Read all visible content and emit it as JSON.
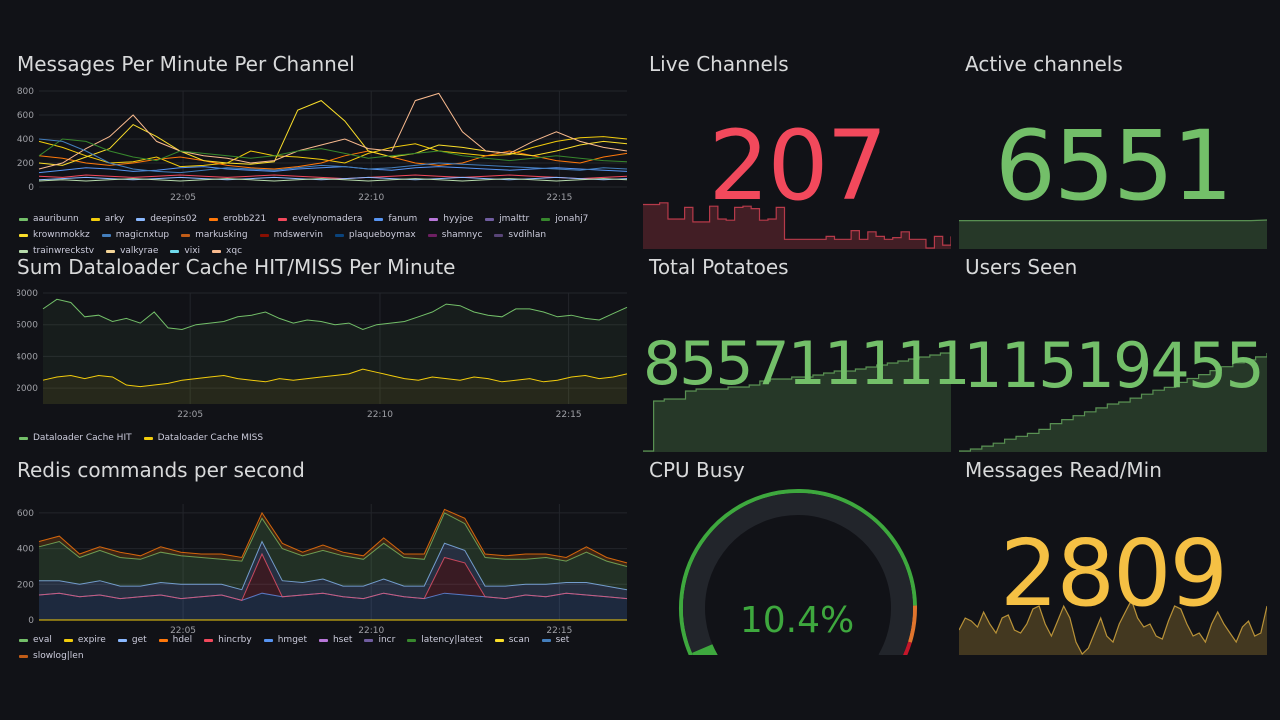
{
  "colors": {
    "background": "#111217",
    "grid": "#23252b",
    "axis_text": "#9fa0a6",
    "red": "#f2495c",
    "green": "#73bf69",
    "yellow": "#f5c044",
    "gauge_green": "#3ea83e",
    "gauge_orange": "#e0752d",
    "gauge_red": "#c4162a"
  },
  "panels": {
    "messages_per_minute": {
      "title": "Messages Per Minute Per Channel",
      "legend": [
        {
          "name": "aauribunn",
          "color": "#73bf69"
        },
        {
          "name": "arky",
          "color": "#f2cc0c"
        },
        {
          "name": "deepins02",
          "color": "#8ab8ff"
        },
        {
          "name": "erobb221",
          "color": "#ff780a"
        },
        {
          "name": "evelynomadera",
          "color": "#f2495c"
        },
        {
          "name": "fanum",
          "color": "#5794f2"
        },
        {
          "name": "hyyjoe",
          "color": "#b877d9"
        },
        {
          "name": "jmalttr",
          "color": "#705da0"
        },
        {
          "name": "jonahj7",
          "color": "#37872d"
        },
        {
          "name": "krownmokkz",
          "color": "#fade2a"
        },
        {
          "name": "magicnxtup",
          "color": "#447ebc"
        },
        {
          "name": "markusking",
          "color": "#c15c17"
        },
        {
          "name": "mdswervin",
          "color": "#890f02"
        },
        {
          "name": "plaqueboymax",
          "color": "#0a437c"
        },
        {
          "name": "shamnyc",
          "color": "#6d1f62"
        },
        {
          "name": "svdihlan",
          "color": "#584477"
        },
        {
          "name": "trainwreckstv",
          "color": "#b7dbab"
        },
        {
          "name": "valkyrae",
          "color": "#f4d598"
        },
        {
          "name": "vixi",
          "color": "#70dbed"
        },
        {
          "name": "xqc",
          "color": "#f9ba8f"
        }
      ],
      "chart_data": {
        "type": "line",
        "title": "Messages Per Minute Per Channel",
        "ylim": [
          0,
          800
        ],
        "yticks": [
          "800",
          "600",
          "400",
          "200",
          "0"
        ],
        "xticks": [
          "22:05",
          "22:10",
          "22:15"
        ],
        "grid": true,
        "legend_placement": "bottom",
        "series": [
          {
            "name": "arky",
            "color": "#f2cc0c",
            "values": [
              380,
              330,
              260,
              200,
              210,
              250,
              170,
              180,
              200,
              300,
              260,
              250,
              230,
              200,
              280,
              330,
              360,
              300,
              280,
              260,
              270,
              330,
              380,
              410,
              420,
              400
            ]
          },
          {
            "name": "erobb221",
            "color": "#ff780a",
            "values": [
              260,
              240,
              200,
              180,
              200,
              230,
              250,
              220,
              180,
              160,
              150,
              170,
              200,
              260,
              300,
              250,
              200,
              180,
              200,
              260,
              300,
              260,
              220,
              200,
              250,
              280
            ]
          },
          {
            "name": "krownmokkz",
            "color": "#fade2a",
            "values": [
              200,
              180,
              250,
              320,
              520,
              420,
              300,
              220,
              200,
              190,
              210,
              640,
              720,
              550,
              300,
              250,
              280,
              350,
              330,
              300,
              280,
              260,
              300,
              350,
              380,
              360
            ]
          },
          {
            "name": "xqc",
            "color": "#f9ba8f",
            "values": [
              150,
              200,
              320,
              420,
              600,
              380,
              300,
              260,
              240,
              200,
              220,
              300,
              350,
              400,
              320,
              300,
              720,
              780,
              460,
              300,
              280,
              380,
              460,
              380,
              330,
              300
            ]
          },
          {
            "name": "jonahj7",
            "color": "#37872d",
            "values": [
              260,
              400,
              380,
              300,
              250,
              220,
              300,
              280,
              260,
              240,
              260,
              300,
              320,
              280,
              240,
              260,
              280,
              300,
              260,
              240,
              220,
              240,
              260,
              240,
              220,
              210
            ]
          },
          {
            "name": "fanum",
            "color": "#5794f2",
            "values": [
              120,
              140,
              160,
              150,
              130,
              140,
              160,
              170,
              150,
              140,
              130,
              150,
              160,
              170,
              150,
              140,
              160,
              170,
              160,
              150,
              140,
              150,
              160,
              150,
              140,
              130
            ]
          },
          {
            "name": "magicnxtup",
            "color": "#447ebc",
            "values": [
              400,
              380,
              300,
              200,
              150,
              130,
              120,
              140,
              160,
              150,
              140,
              160,
              180,
              170,
              150,
              160,
              180,
              200,
              190,
              180,
              170,
              160,
              150,
              140,
              160,
              150
            ]
          },
          {
            "name": "evelynomadera",
            "color": "#f2495c",
            "values": [
              90,
              80,
              100,
              90,
              80,
              90,
              100,
              90,
              80,
              90,
              100,
              90,
              80,
              70,
              80,
              90,
              100,
              90,
              80,
              90,
              100,
              90,
              80,
              70,
              80,
              90
            ]
          },
          {
            "name": "deepins02",
            "color": "#8ab8ff",
            "values": [
              60,
              70,
              80,
              70,
              60,
              70,
              80,
              70,
              60,
              70,
              80,
              70,
              60,
              70,
              80,
              70,
              60,
              70,
              80,
              70,
              60,
              70,
              80,
              70,
              60,
              70
            ]
          },
          {
            "name": "trainwreckstv",
            "color": "#b7dbab",
            "values": [
              50,
              60,
              50,
              60,
              70,
              60,
              50,
              60,
              70,
              60,
              50,
              60,
              70,
              60,
              50,
              60,
              70,
              60,
              50,
              60,
              70,
              60,
              50,
              60,
              70,
              60
            ]
          }
        ]
      }
    },
    "dataloader_cache": {
      "title": "Sum Dataloader Cache HIT/MISS Per Minute",
      "legend": [
        {
          "name": "Dataloader Cache HIT",
          "color": "#73bf69"
        },
        {
          "name": "Dataloader Cache MISS",
          "color": "#f2cc0c"
        }
      ],
      "chart_data": {
        "type": "area",
        "title": "Sum Dataloader Cache HIT/MISS Per Minute",
        "ylim": [
          1000,
          8000
        ],
        "yticks": [
          "8000",
          "6000",
          "4000",
          "2000"
        ],
        "xticks": [
          "22:05",
          "22:10",
          "22:15"
        ],
        "grid": true,
        "legend_placement": "bottom",
        "series": [
          {
            "name": "Dataloader Cache HIT",
            "color": "#73bf69",
            "values": [
              7000,
              7600,
              7400,
              6500,
              6600,
              6200,
              6400,
              6100,
              6800,
              5800,
              5700,
              6000,
              6100,
              6200,
              6500,
              6600,
              6800,
              6400,
              6100,
              6300,
              6200,
              6000,
              6100,
              5700,
              6000,
              6100,
              6200,
              6500,
              6800,
              7300,
              7200,
              6800,
              6600,
              6500,
              7000,
              7000,
              6800,
              6500,
              6600,
              6400,
              6300,
              6700,
              7100
            ]
          },
          {
            "name": "Dataloader Cache MISS",
            "color": "#f2cc0c",
            "values": [
              2500,
              2700,
              2800,
              2600,
              2800,
              2700,
              2200,
              2100,
              2200,
              2300,
              2500,
              2600,
              2700,
              2800,
              2600,
              2500,
              2400,
              2600,
              2500,
              2600,
              2700,
              2800,
              2900,
              3200,
              3000,
              2800,
              2600,
              2500,
              2700,
              2600,
              2500,
              2700,
              2600,
              2400,
              2500,
              2600,
              2400,
              2500,
              2700,
              2800,
              2600,
              2700,
              2900
            ]
          }
        ]
      }
    },
    "redis_commands": {
      "title": "Redis commands per second",
      "legend": [
        {
          "name": "eval",
          "color": "#73bf69"
        },
        {
          "name": "expire",
          "color": "#f2cc0c"
        },
        {
          "name": "get",
          "color": "#8ab8ff"
        },
        {
          "name": "hdel",
          "color": "#ff780a"
        },
        {
          "name": "hincrby",
          "color": "#f2495c"
        },
        {
          "name": "hmget",
          "color": "#5794f2"
        },
        {
          "name": "hset",
          "color": "#b877d9"
        },
        {
          "name": "incr",
          "color": "#705da0"
        },
        {
          "name": "latency|latest",
          "color": "#37872d"
        },
        {
          "name": "scan",
          "color": "#fade2a"
        },
        {
          "name": "set",
          "color": "#447ebc"
        },
        {
          "name": "slowlog|len",
          "color": "#c15c17"
        }
      ],
      "chart_data": {
        "type": "area",
        "title": "Redis commands per second",
        "stacked": true,
        "ylim": [
          0,
          650
        ],
        "yticks": [
          "600",
          "400",
          "200",
          "0"
        ],
        "xticks": [
          "22:05",
          "22:10",
          "22:15"
        ],
        "grid": true,
        "legend_placement": "bottom",
        "series": [
          {
            "name": "hmget",
            "color": "#5794f2",
            "values": [
              140,
              150,
              130,
              140,
              120,
              130,
              140,
              120,
              130,
              140,
              110,
              150,
              130,
              140,
              150,
              130,
              120,
              150,
              130,
              120,
              150,
              140,
              130,
              120,
              140,
              130,
              150,
              140,
              130,
              120
            ]
          },
          {
            "name": "hincrby",
            "color": "#f2495c",
            "values": [
              0,
              0,
              0,
              0,
              0,
              0,
              0,
              0,
              0,
              0,
              0,
              220,
              0,
              0,
              0,
              0,
              0,
              0,
              0,
              0,
              200,
              180,
              0,
              0,
              0,
              0,
              0,
              0,
              0,
              0
            ]
          },
          {
            "name": "get",
            "color": "#8ab8ff",
            "values": [
              80,
              70,
              70,
              80,
              70,
              60,
              70,
              80,
              70,
              60,
              60,
              70,
              90,
              70,
              80,
              60,
              70,
              80,
              60,
              70,
              80,
              70,
              60,
              70,
              60,
              70,
              60,
              70,
              60,
              50
            ]
          },
          {
            "name": "eval",
            "color": "#73bf69",
            "values": [
              190,
              220,
              150,
              170,
              160,
              150,
              170,
              160,
              150,
              140,
              160,
              130,
              180,
              150,
              160,
              170,
              150,
              200,
              160,
              150,
              170,
              150,
              160,
              150,
              140,
              150,
              120,
              170,
              140,
              130
            ]
          },
          {
            "name": "hdel",
            "color": "#ff780a",
            "values": [
              30,
              30,
              20,
              20,
              30,
              20,
              30,
              20,
              20,
              30,
              20,
              30,
              30,
              20,
              30,
              20,
              20,
              30,
              20,
              30,
              20,
              30,
              20,
              20,
              30,
              20,
              20,
              30,
              20,
              20
            ]
          }
        ]
      }
    },
    "live_channels": {
      "title": "Live Channels",
      "value": "207",
      "color": "#f2495c",
      "sparkline": [
        0.75,
        0.75,
        0.78,
        0.5,
        0.5,
        0.7,
        0.45,
        0.45,
        0.72,
        0.5,
        0.48,
        0.7,
        0.72,
        0.68,
        0.48,
        0.5,
        0.7,
        0.15,
        0.15,
        0.15,
        0.15,
        0.15,
        0.2,
        0.15,
        0.15,
        0.3,
        0.15,
        0.28,
        0.2,
        0.15,
        0.18,
        0.28,
        0.15,
        0.15,
        0.0,
        0.2,
        0.05,
        0.2
      ]
    },
    "active_channels": {
      "title": "Active channels",
      "value": "6551",
      "color": "#73bf69",
      "sparkline": [
        0.98,
        0.98,
        0.98,
        0.98,
        0.98,
        0.98,
        0.98,
        0.98,
        0.98,
        0.98,
        0.98,
        0.98,
        0.98,
        0.98,
        0.98,
        0.98,
        0.98,
        0.98,
        0.98,
        1.0
      ]
    },
    "total_potatoes": {
      "title": "Total Potatoes",
      "value": "855711111",
      "color": "#73bf69",
      "sparkline": [
        0.0,
        0.5,
        0.52,
        0.52,
        0.6,
        0.62,
        0.62,
        0.62,
        0.64,
        0.64,
        0.66,
        0.7,
        0.72,
        0.72,
        0.74,
        0.74,
        0.76,
        0.78,
        0.8,
        0.8,
        0.82,
        0.84,
        0.86,
        0.88,
        0.9,
        0.92,
        0.94,
        0.96,
        0.98,
        1.0
      ]
    },
    "users_seen": {
      "title": "Users Seen",
      "value": "11519455",
      "color": "#73bf69",
      "sparkline": [
        0.0,
        0.02,
        0.05,
        0.08,
        0.12,
        0.15,
        0.18,
        0.22,
        0.28,
        0.32,
        0.36,
        0.4,
        0.44,
        0.48,
        0.5,
        0.54,
        0.58,
        0.62,
        0.65,
        0.7,
        0.74,
        0.78,
        0.82,
        0.86,
        0.9,
        0.93,
        0.96,
        1.0
      ]
    },
    "cpu_busy": {
      "title": "CPU Busy",
      "value": "10.4%",
      "percent": 10.4
    },
    "messages_read": {
      "title": "Messages Read/Min",
      "value": "2809",
      "color": "#f5c044",
      "sparkline": [
        0.4,
        0.6,
        0.55,
        0.45,
        0.7,
        0.5,
        0.35,
        0.6,
        0.65,
        0.4,
        0.35,
        0.5,
        0.75,
        0.8,
        0.5,
        0.3,
        0.55,
        0.8,
        0.6,
        0.2,
        0.0,
        0.1,
        0.35,
        0.6,
        0.3,
        0.2,
        0.5,
        0.7,
        0.9,
        0.6,
        0.45,
        0.5,
        0.3,
        0.25,
        0.55,
        0.8,
        0.75,
        0.5,
        0.3,
        0.35,
        0.2,
        0.5,
        0.7,
        0.5,
        0.35,
        0.2,
        0.45,
        0.55,
        0.3,
        0.35,
        0.8
      ]
    }
  }
}
